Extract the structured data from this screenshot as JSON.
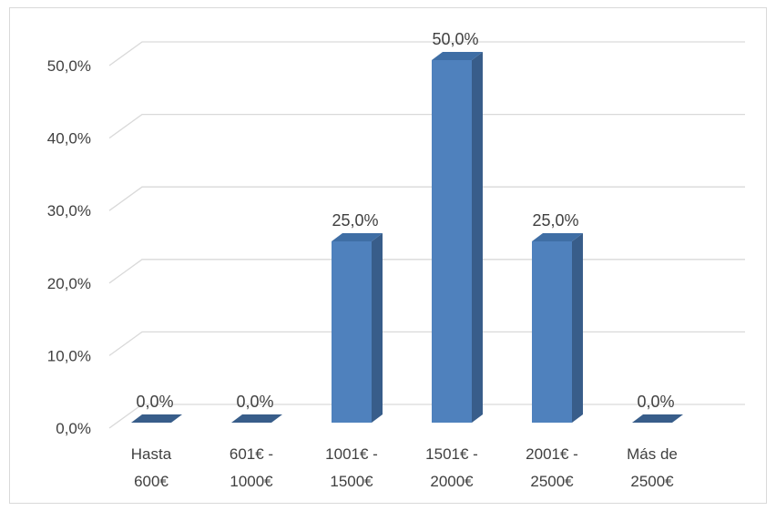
{
  "chart_data": {
    "type": "bar",
    "categories": [
      [
        "Hasta",
        "600€"
      ],
      [
        "601€ -",
        "1000€"
      ],
      [
        "1001€ -",
        "1500€"
      ],
      [
        "1501€ -",
        "2000€"
      ],
      [
        "2001€ -",
        "2500€"
      ],
      [
        "Más de",
        "2500€"
      ]
    ],
    "values": [
      0.0,
      0.0,
      25.0,
      50.0,
      25.0,
      0.0
    ],
    "data_labels": [
      "0,0%",
      "0,0%",
      "25,0%",
      "50,0%",
      "25,0%",
      "0,0%"
    ],
    "y_ticks": [
      "0,0%",
      "10,0%",
      "20,0%",
      "30,0%",
      "40,0%",
      "50,0%"
    ],
    "ylim": [
      0,
      50
    ],
    "title": "",
    "xlabel": "",
    "ylabel": "",
    "grid": true,
    "legend": "none",
    "colors": {
      "bar_front": "#4f81bd",
      "bar_side": "#385d8a",
      "bar_top": "#3f6ea5",
      "gridline": "#d9d9d9",
      "text": "#404040"
    }
  }
}
